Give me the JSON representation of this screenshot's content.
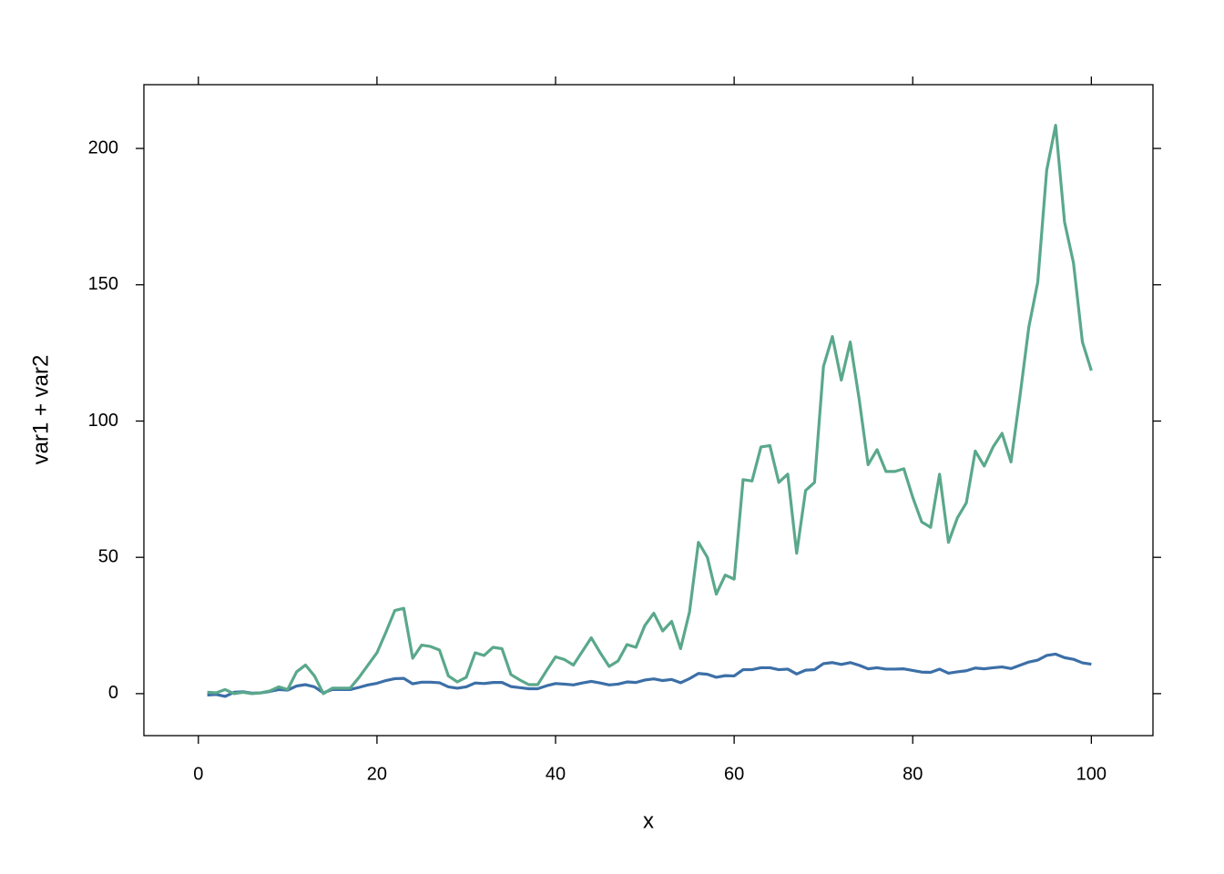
{
  "chart_data": {
    "type": "line",
    "xlabel": "x",
    "ylabel": "var1 + var2",
    "x": [
      1,
      2,
      3,
      4,
      5,
      6,
      7,
      8,
      9,
      10,
      11,
      12,
      13,
      14,
      15,
      16,
      17,
      18,
      19,
      20,
      21,
      22,
      23,
      24,
      25,
      26,
      27,
      28,
      29,
      30,
      31,
      32,
      33,
      34,
      35,
      36,
      37,
      38,
      39,
      40,
      41,
      42,
      43,
      44,
      45,
      46,
      47,
      48,
      49,
      50,
      51,
      52,
      53,
      54,
      55,
      56,
      57,
      58,
      59,
      60,
      61,
      62,
      63,
      64,
      65,
      66,
      67,
      68,
      69,
      70,
      71,
      72,
      73,
      74,
      75,
      76,
      77,
      78,
      79,
      80,
      81,
      82,
      83,
      84,
      85,
      86,
      87,
      88,
      89,
      90,
      91,
      92,
      93,
      94,
      95,
      96,
      97,
      98,
      99,
      100
    ],
    "series": [
      {
        "color": "#3c6fa7",
        "values": [
          -0.5,
          -0.3,
          -1,
          0.5,
          0.7,
          0.2,
          0.3,
          0.8,
          1.5,
          1.3,
          2.8,
          3.3,
          2.5,
          0.3,
          1.5,
          1.5,
          1.5,
          2.3,
          3.2,
          3.8,
          4.8,
          5.5,
          5.6,
          3.6,
          4.2,
          4.2,
          4,
          2.5,
          2,
          2.5,
          3.9,
          3.7,
          4.1,
          4.1,
          2.6,
          2.2,
          1.8,
          1.8,
          2.9,
          3.7,
          3.5,
          3.2,
          3.9,
          4.5,
          3.9,
          3.2,
          3.5,
          4.3,
          4.1,
          5,
          5.4,
          4.8,
          5.2,
          4,
          5.5,
          7.4,
          7.1,
          6,
          6.6,
          6.5,
          8.8,
          8.8,
          9.5,
          9.5,
          8.8,
          9,
          7.2,
          8.6,
          8.8,
          11,
          11.4,
          10.7,
          11.4,
          10.4,
          9.1,
          9.5,
          9,
          9,
          9.1,
          8.5,
          7.9,
          7.8,
          9,
          7.5,
          8,
          8.4,
          9.4,
          9.1,
          9.5,
          9.8,
          9.2,
          10.4,
          11.6,
          12.3,
          14,
          14.5,
          13.2,
          12.6,
          11.3,
          10.8
        ]
      },
      {
        "color": "#5aa88b",
        "values": [
          0.5,
          0.3,
          1.5,
          0,
          0.5,
          0,
          0.3,
          1,
          2.5,
          1.5,
          8,
          10.5,
          6.5,
          0,
          2,
          2,
          2,
          6,
          10.5,
          15,
          22.5,
          30.5,
          31.3,
          13,
          17.8,
          17.3,
          16,
          6.5,
          4.3,
          6,
          15,
          14,
          17,
          16.5,
          7,
          5,
          3.3,
          3.3,
          8.5,
          13.5,
          12.5,
          10.5,
          15.5,
          20.5,
          15,
          10,
          12,
          18,
          17,
          25,
          29.5,
          23,
          26.5,
          16.5,
          30,
          55.5,
          50,
          36.5,
          43.5,
          42,
          78.5,
          78,
          90.5,
          91,
          77.5,
          80.5,
          51.5,
          74.5,
          77.5,
          120,
          131,
          115,
          129,
          108,
          84,
          89.5,
          81.5,
          81.5,
          82.5,
          72,
          63,
          61,
          80.5,
          55.5,
          64.5,
          70,
          89,
          83.5,
          90.5,
          95.5,
          85,
          109,
          134.5,
          151,
          192,
          208.5,
          173,
          158,
          129,
          118.5
        ]
      }
    ],
    "xlim": [
      -6.1,
      106.9
    ],
    "xticks": [
      0,
      20,
      40,
      60,
      80,
      100
    ],
    "ylim": [
      -15.4,
      223.4
    ],
    "yticks": [
      0,
      50,
      100,
      150,
      200
    ]
  }
}
